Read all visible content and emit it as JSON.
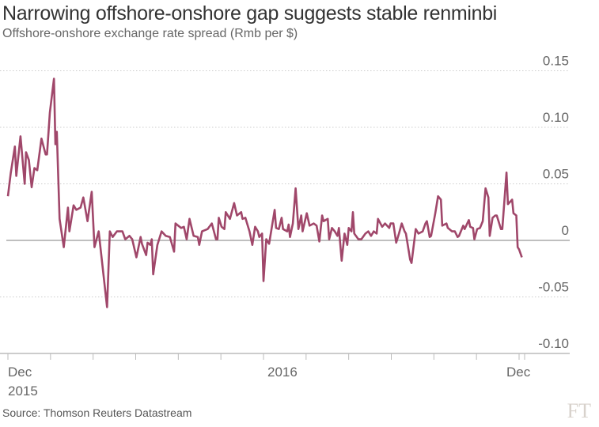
{
  "title": "Narrowing offshore-onshore gap suggests stable renminbi",
  "subtitle": "Offshore-onshore exchange rate spread (Rmb per $)",
  "source": "Source: Thomson Reuters Datastream",
  "logo": "FT",
  "chart_data": {
    "type": "line",
    "title": "Narrowing offshore-onshore gap suggests stable renminbi",
    "ylabel": "Offshore-onshore exchange rate spread (Rmb per $)",
    "xlabel": "",
    "xlim": [
      0,
      366
    ],
    "ylim": [
      -0.1,
      0.15
    ],
    "yticks": [
      0.15,
      0.1,
      0.05,
      0,
      -0.05,
      -0.1
    ],
    "ytick_labels": [
      "0.15",
      "0.10",
      "0.05",
      "0",
      "-0.05",
      "-0.10"
    ],
    "xtick_labels": [
      {
        "day": 0,
        "line1": "Dec",
        "line2": "2015"
      },
      {
        "day": 198,
        "line1": "2016",
        "line2": ""
      },
      {
        "day": 366,
        "line1": "Dec",
        "line2": ""
      }
    ],
    "x_unit": "days since start of Dec 2015",
    "color": "#a0476a",
    "grid": true,
    "series": [
      {
        "name": "Spread",
        "x": [
          0,
          2,
          5,
          6,
          9,
          12,
          13,
          15,
          17,
          19,
          21,
          24,
          27,
          28,
          30,
          33,
          34,
          35,
          37,
          40,
          43,
          44,
          47,
          49,
          52,
          54,
          57,
          60,
          62,
          65,
          71,
          73,
          75,
          78,
          82,
          84,
          87,
          89,
          92,
          95,
          96,
          99,
          100,
          102,
          103,
          104,
          107,
          110,
          113,
          116,
          119,
          120,
          124,
          126,
          128,
          130,
          133,
          136,
          137,
          139,
          143,
          146,
          149,
          150,
          151,
          153,
          155,
          156,
          159,
          162,
          164,
          167,
          168,
          170,
          173,
          175,
          177,
          179,
          180,
          182,
          183,
          185,
          187,
          191,
          192,
          194,
          196,
          197,
          200,
          201,
          202,
          204,
          206,
          208,
          210,
          211,
          214,
          216,
          219,
          221,
          223,
          225,
          226,
          229,
          230,
          232,
          234,
          236,
          237,
          239,
          241,
          243,
          244,
          246,
          247,
          248,
          251,
          253,
          256,
          258,
          260,
          262,
          264,
          265,
          268,
          270,
          273,
          274,
          276,
          278,
          280,
          282,
          284,
          285,
          288,
          289,
          292,
          294,
          297,
          299,
          300,
          302,
          303,
          306,
          308,
          310,
          311,
          314,
          315,
          318,
          320,
          322,
          323,
          326,
          327,
          330,
          331,
          333,
          334,
          336,
          338,
          340,
          342,
          344,
          345,
          347,
          349,
          350,
          353,
          354,
          357,
          358,
          361,
          362,
          364,
          365,
          366,
          368
        ],
        "values": [
          0.039,
          0.059,
          0.083,
          0.057,
          0.092,
          0.05,
          0.078,
          0.071,
          0.047,
          0.064,
          0.062,
          0.09,
          0.076,
          0.076,
          0.113,
          0.143,
          0.085,
          0.096,
          0.019,
          -0.006,
          0.029,
          0.008,
          0.031,
          0.027,
          0.029,
          0.038,
          0.017,
          0.043,
          -0.006,
          0.008,
          -0.059,
          0.008,
          0.003,
          0.008,
          0.008,
          0.001,
          0.004,
          0.001,
          -0.015,
          0.003,
          -0.003,
          -0.013,
          -0.002,
          -0.004,
          0.001,
          -0.03,
          -0.004,
          0.008,
          0.004,
          0.003,
          -0.01,
          0.015,
          0.011,
          0.012,
          0.001,
          0.019,
          0.004,
          0.003,
          -0.004,
          0.008,
          0.01,
          0.015,
          0.001,
          0.001,
          0.02,
          0.012,
          0.01,
          0.025,
          0.019,
          0.033,
          0.022,
          0.025,
          0.019,
          0.02,
          0.008,
          -0.004,
          0.012,
          0.008,
          0.003,
          0.006,
          -0.036,
          0.001,
          -0.003,
          0.027,
          0.011,
          0.01,
          0.02,
          0.01,
          0.008,
          0.014,
          0.003,
          0.015,
          0.046,
          0.01,
          0.022,
          0.008,
          0.024,
          0.013,
          0.015,
          0.013,
          -0.001,
          0.022,
          0.017,
          0.019,
          0.001,
          0.011,
          0.008,
          0.004,
          0.011,
          -0.018,
          0.006,
          -0.004,
          0.011,
          0.008,
          0.025,
          0.006,
          0.001,
          0.001,
          0.006,
          0.008,
          0.004,
          0.008,
          0.006,
          0.019,
          0.012,
          0.015,
          0.011,
          0.015,
          0.015,
          -0.002,
          0.006,
          0.015,
          0.008,
          0.006,
          -0.017,
          -0.02,
          0.01,
          0.006,
          0.008,
          0.015,
          0.017,
          0.003,
          0.004,
          0.024,
          0.039,
          0.036,
          0.013,
          0.015,
          0.011,
          0.008,
          0.008,
          0.003,
          0.004,
          0.013,
          0.01,
          0.018,
          0.012,
          0.011,
          0.001,
          0.01,
          0.011,
          0.017,
          0.046,
          0.038,
          0.004,
          0.02,
          0.022,
          0.022,
          0.01,
          0.01,
          0.06,
          0.032,
          0.036,
          0.024,
          0.022,
          -0.006,
          -0.008,
          -0.015
        ]
      }
    ]
  }
}
